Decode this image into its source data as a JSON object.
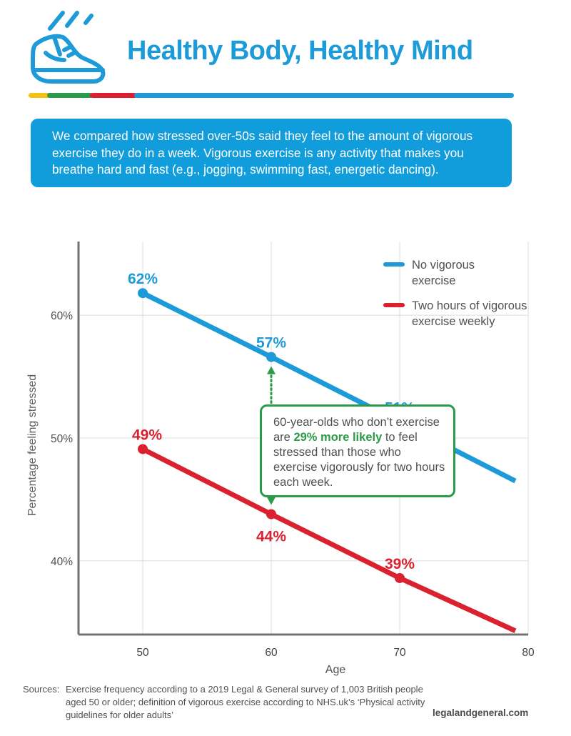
{
  "header": {
    "title": "Healthy Body, Healthy Mind",
    "icon": "running-shoe-icon",
    "stripe_colors": [
      "#f2c114",
      "#2a9b48",
      "#d9212f",
      "#1d9bd8"
    ]
  },
  "intro": {
    "text": "We compared how stressed over-50s said they feel to the amount of vigorous exercise they do in a week. Vigorous exercise is any activity that makes you breathe hard and fast (e.g., jogging, swimming fast, energetic dancing)."
  },
  "chart_data": {
    "type": "line",
    "xlabel": "Age",
    "ylabel": "Percentage feeling stressed",
    "xlim": [
      45,
      80
    ],
    "ylim": [
      34,
      66
    ],
    "x_ticks": [
      50,
      60,
      70,
      80
    ],
    "x_tick_labels": [
      "50",
      "60",
      "70",
      "80"
    ],
    "y_ticks": [
      40,
      50,
      60
    ],
    "y_tick_labels": [
      "40%",
      "50%",
      "60%"
    ],
    "grid": true,
    "legend_position": "top-right",
    "series": [
      {
        "name": "No vigorous exercise",
        "legend_lines": [
          "No vigorous",
          "exercise"
        ],
        "color": "#1d9bd8",
        "x": [
          50,
          60,
          70,
          79
        ],
        "y": [
          61.8,
          56.6,
          51.3,
          46.5
        ],
        "points": [
          {
            "x": 50,
            "y": 61.8,
            "label": "62%"
          },
          {
            "x": 60,
            "y": 56.6,
            "label": "57%"
          },
          {
            "x": 70,
            "y": 51.3,
            "label": "51%"
          }
        ]
      },
      {
        "name": "Two hours of vigorous exercise weekly",
        "legend_lines": [
          "Two hours of vigorous",
          "exercise weekly"
        ],
        "color": "#d9212f",
        "x": [
          50,
          60,
          70,
          79
        ],
        "y": [
          49.1,
          43.8,
          38.6,
          34.3
        ],
        "points": [
          {
            "x": 50,
            "y": 49.1,
            "label": "49%"
          },
          {
            "x": 60,
            "y": 43.8,
            "label": "44%"
          },
          {
            "x": 70,
            "y": 38.6,
            "label": "39%"
          }
        ]
      }
    ],
    "annotation": {
      "x": 60,
      "color": "#2a9b48",
      "text_before": "60-year-olds who don’t exercise are ",
      "highlight": "29% more likely",
      "text_after": " to feel stressed than those who exercise vigorously for two hours each week."
    }
  },
  "footer": {
    "sources_label": "Sources:",
    "sources_text": "Exercise frequency according to a 2019 Legal & General survey of 1,003 British people aged 50 or older; definition of vigorous exercise according to NHS.uk’s ‘Physical activity guidelines for older adults’",
    "website": "legalandgeneral.com"
  }
}
